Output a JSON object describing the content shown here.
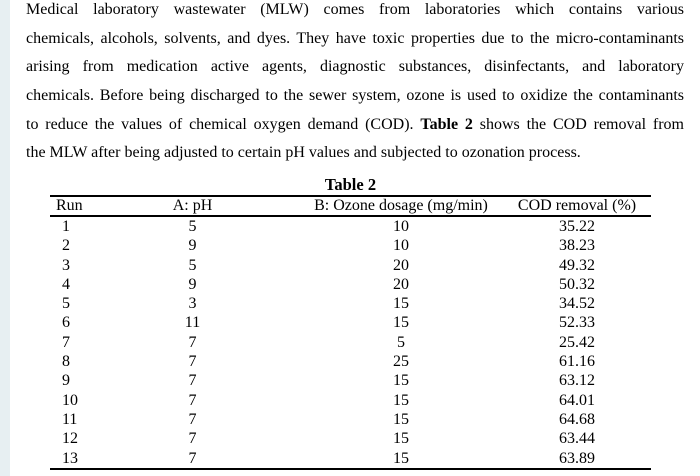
{
  "page": {
    "left_strip_color": "#e7eff2",
    "text_color": "#000000"
  },
  "paragraph": {
    "lines": [
      "Medical laboratory wastewater (MLW) comes from laboratories which contains various",
      "chemicals, alcohols, solvents, and dyes. They have toxic properties due to the micro-contaminants",
      "arising from medication active agents, diagnostic substances, disinfectants, and laboratory",
      "chemicals. Before being discharged to the sewer system, ozone is used to oxidize the contaminants",
      {
        "pre": "to reduce the values of chemical oxygen demand (COD). ",
        "bold": "Table 2",
        "post": " shows the COD removal from"
      },
      "the MLW after being adjusted to certain pH values and subjected to ozonation process."
    ]
  },
  "table": {
    "title": "Table 2",
    "columns": [
      "Run",
      "A: pH",
      "B: Ozone dosage (mg/min)",
      "COD removal (%)"
    ],
    "rows": [
      [
        "1",
        "5",
        "10",
        "35.22"
      ],
      [
        "2",
        "9",
        "10",
        "38.23"
      ],
      [
        "3",
        "5",
        "20",
        "49.32"
      ],
      [
        "4",
        "9",
        "20",
        "50.32"
      ],
      [
        "5",
        "3",
        "15",
        "34.52"
      ],
      [
        "6",
        "11",
        "15",
        "52.33"
      ],
      [
        "7",
        "7",
        "5",
        "25.42"
      ],
      [
        "8",
        "7",
        "25",
        "61.16"
      ],
      [
        "9",
        "7",
        "15",
        "63.12"
      ],
      [
        "10",
        "7",
        "15",
        "64.01"
      ],
      [
        "11",
        "7",
        "15",
        "64.68"
      ],
      [
        "12",
        "7",
        "15",
        "63.44"
      ],
      [
        "13",
        "7",
        "15",
        "63.89"
      ]
    ]
  }
}
